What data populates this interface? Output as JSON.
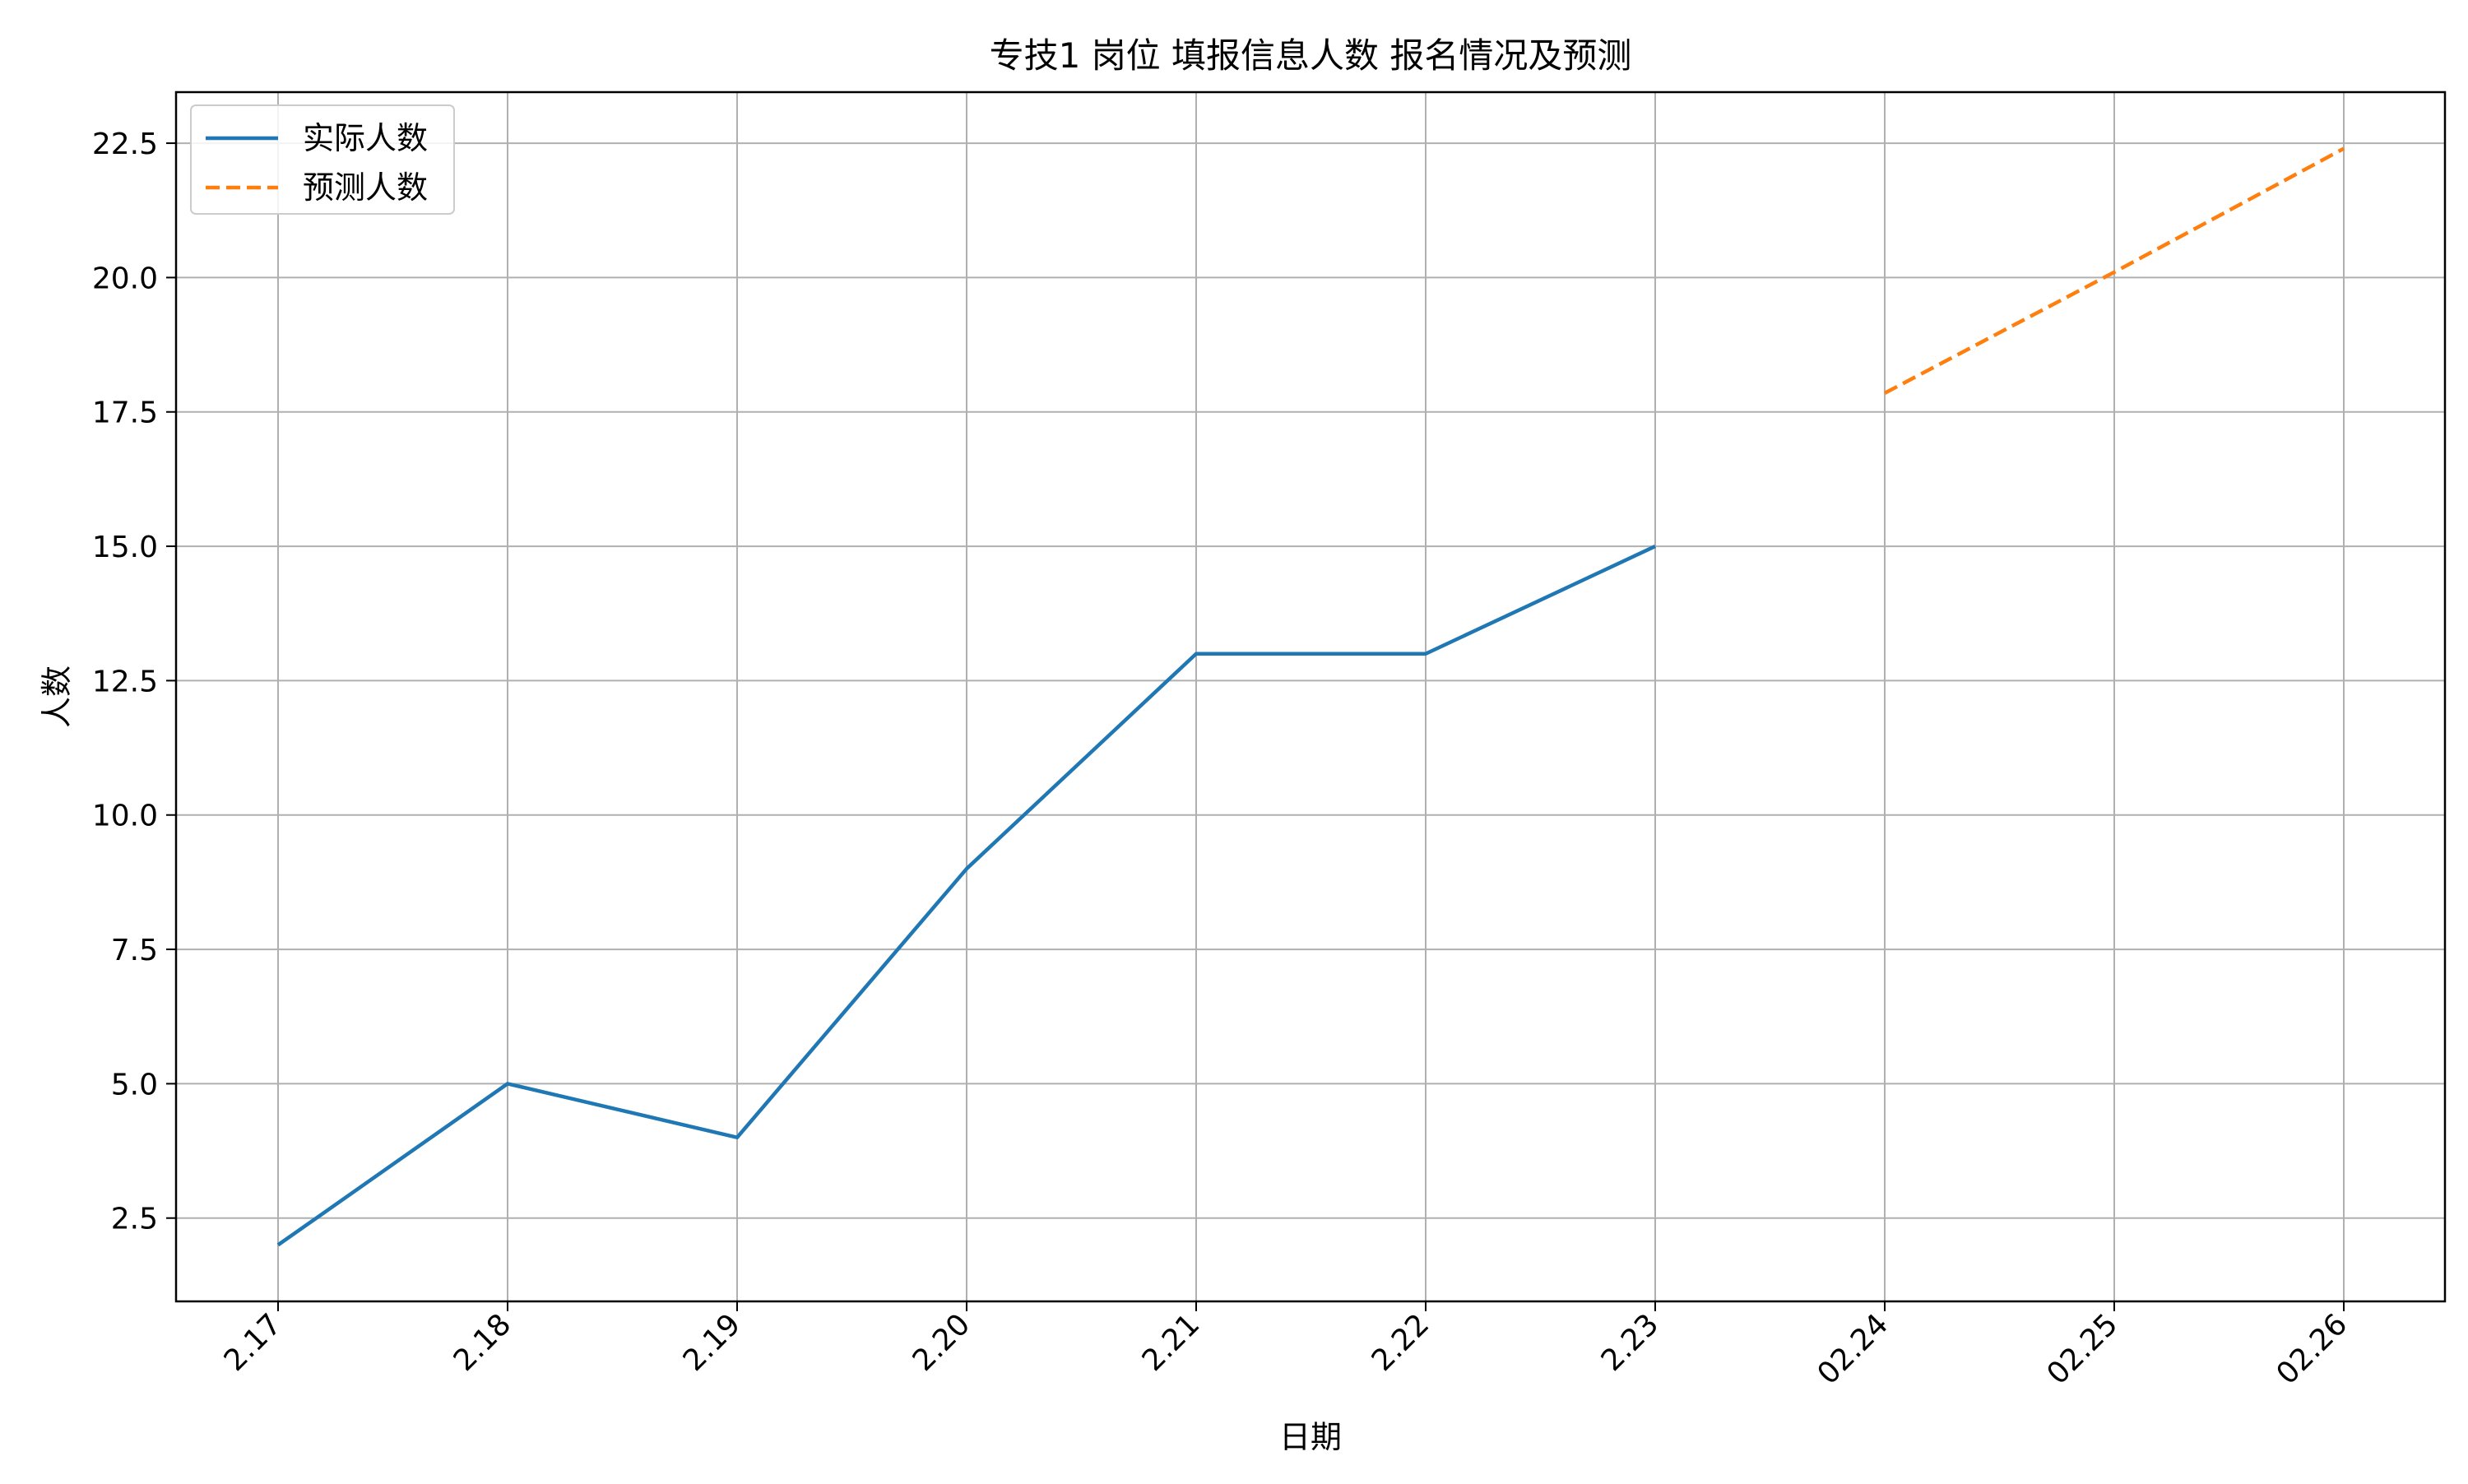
{
  "chart_data": {
    "type": "line",
    "title": "专技1 岗位 填报信息人数 报名情况及预测",
    "xlabel": "日期",
    "ylabel": "人数",
    "categories": [
      "2.17",
      "2.18",
      "2.19",
      "2.20",
      "2.21",
      "2.22",
      "2.23",
      "02.24",
      "02.25",
      "02.26"
    ],
    "ylim": [
      0.95,
      23.45
    ],
    "yticks": [
      2.5,
      5.0,
      7.5,
      10.0,
      12.5,
      15.0,
      17.5,
      20.0,
      22.5
    ],
    "ytick_labels": [
      "2.5",
      "5.0",
      "7.5",
      "10.0",
      "12.5",
      "15.0",
      "17.5",
      "20.0",
      "22.5"
    ],
    "grid": true,
    "legend_position": "top-left",
    "series": [
      {
        "name": "实际人数",
        "style": "solid",
        "color": "#1f77b4",
        "points": [
          {
            "x": "2.17",
            "y": 2
          },
          {
            "x": "2.18",
            "y": 5
          },
          {
            "x": "2.19",
            "y": 4
          },
          {
            "x": "2.20",
            "y": 9
          },
          {
            "x": "2.21",
            "y": 13
          },
          {
            "x": "2.22",
            "y": 13
          },
          {
            "x": "2.23",
            "y": 15
          }
        ]
      },
      {
        "name": "预测人数",
        "style": "dashed",
        "color": "#ff7f0e",
        "points": [
          {
            "x": "02.24",
            "y": 17.85
          },
          {
            "x": "02.25",
            "y": 20.1
          },
          {
            "x": "02.26",
            "y": 22.4
          }
        ]
      }
    ]
  }
}
